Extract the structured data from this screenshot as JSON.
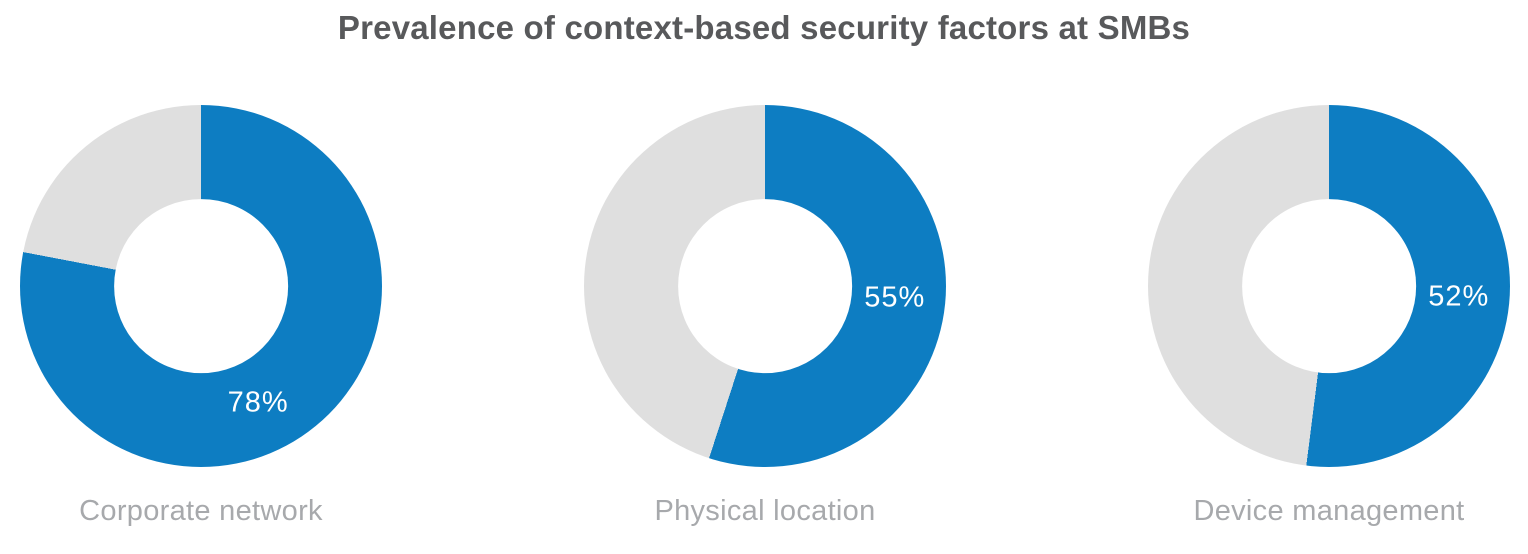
{
  "title": "Prevalence of context-based security factors at SMBs",
  "chart_data": {
    "type": "pie",
    "subtype": "donut",
    "title": "Prevalence of context-based security factors at SMBs",
    "categories": [
      "Corporate network",
      "Physical location",
      "Device management"
    ],
    "values": [
      78,
      55,
      52
    ],
    "display_values": [
      "78%",
      "55%",
      "52%"
    ],
    "unit": "%",
    "start_angle_deg": 0,
    "direction": "clockwise",
    "legend": "none",
    "colors": {
      "value_segment": "#0d7dc2",
      "remainder_segment": "#dfdfdf"
    },
    "text_colors": {
      "title": "#58595b",
      "category_label": "#a7a9ac",
      "percent_label": "#ffffff"
    },
    "layout": {
      "donut_hole_fraction": 0.48,
      "percent_label_radius_fraction": 0.72,
      "percent_label_angles_deg": [
        154,
        95.5,
        95
      ]
    }
  }
}
